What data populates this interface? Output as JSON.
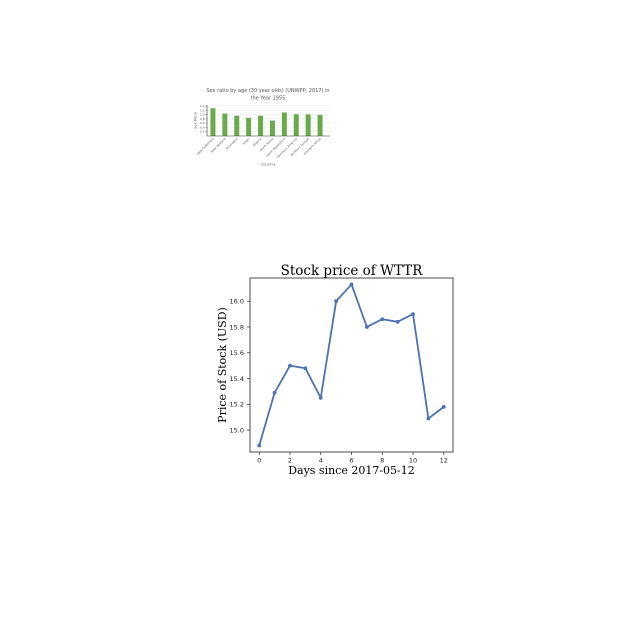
{
  "chart_data": [
    {
      "type": "bar",
      "title": "Sex ratio by age (30 year olds) (UNWPP, 2017) in the Year 1955",
      "title_lines": [
        "Sex ratio by age (30 year olds) (UNWPP, 2017) in",
        "the Year 1955"
      ],
      "xlabel": "Country",
      "ylabel": "Sex Ratio",
      "categories": [
        "New Caledonia",
        "New Zealand",
        "Nicaragua",
        "Niger",
        "Nigeria",
        "North Korea",
        "North Macedonia",
        "Northern America",
        "Northern Europe",
        "Northern Africa"
      ],
      "values": [
        1.3,
        1.05,
        0.95,
        0.85,
        0.95,
        0.72,
        1.1,
        1.02,
        1.01,
        0.99
      ],
      "y_ticks": [
        "0.2",
        "0.4",
        "0.6",
        "0.8",
        "1.0",
        "1.2",
        "1.4"
      ],
      "ylim": [
        0,
        1.45
      ],
      "bar_color": "#6aaa4b",
      "grid": true,
      "legend": "none"
    },
    {
      "type": "line",
      "title": "Stock price of WTTR",
      "xlabel": "Days since 2017-05-12",
      "ylabel": "Price of Stock (USD)",
      "x": [
        0,
        1,
        2,
        3,
        4,
        5,
        6,
        7,
        8,
        9,
        10,
        11,
        12
      ],
      "y": [
        14.88,
        15.29,
        15.5,
        15.48,
        15.25,
        16.0,
        16.13,
        15.8,
        15.86,
        15.84,
        15.9,
        15.09,
        15.18
      ],
      "x_ticks": [
        0,
        2,
        4,
        6,
        8,
        10,
        12
      ],
      "y_ticks": [
        15.0,
        15.2,
        15.4,
        15.6,
        15.8,
        16.0
      ],
      "xlim": [
        -0.6,
        12.6
      ],
      "ylim": [
        14.83,
        16.18
      ],
      "line_color": "#4c72b0",
      "grid": false,
      "legend": "none"
    }
  ]
}
